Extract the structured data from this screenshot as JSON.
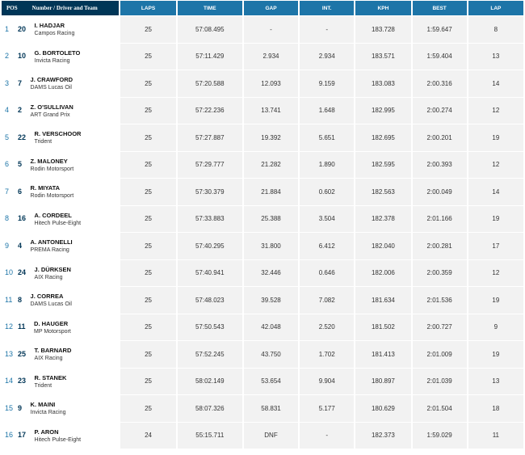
{
  "headers": {
    "pos": "POS",
    "driver": "Number / Driver and Team",
    "laps": "LAPS",
    "time": "TIME",
    "gap": "GAP",
    "int": "INT.",
    "kph": "KPH",
    "best": "BEST",
    "lap": "LAP"
  },
  "rows": [
    {
      "pos": "1",
      "num": "20",
      "name": "I. HADJAR",
      "team": "Campos Racing",
      "laps": "25",
      "time": "57:08.495",
      "gap": "-",
      "int": "-",
      "kph": "183.728",
      "best": "1:59.647",
      "lap": "8"
    },
    {
      "pos": "2",
      "num": "10",
      "name": "G. BORTOLETO",
      "team": "Invicta Racing",
      "laps": "25",
      "time": "57:11.429",
      "gap": "2.934",
      "int": "2.934",
      "kph": "183.571",
      "best": "1:59.404",
      "lap": "13"
    },
    {
      "pos": "3",
      "num": "7",
      "name": "J. CRAWFORD",
      "team": "DAMS Lucas Oil",
      "laps": "25",
      "time": "57:20.588",
      "gap": "12.093",
      "int": "9.159",
      "kph": "183.083",
      "best": "2:00.316",
      "lap": "14"
    },
    {
      "pos": "4",
      "num": "2",
      "name": "Z. O'SULLIVAN",
      "team": "ART Grand Prix",
      "laps": "25",
      "time": "57:22.236",
      "gap": "13.741",
      "int": "1.648",
      "kph": "182.995",
      "best": "2:00.274",
      "lap": "12"
    },
    {
      "pos": "5",
      "num": "22",
      "name": "R. VERSCHOOR",
      "team": "Trident",
      "laps": "25",
      "time": "57:27.887",
      "gap": "19.392",
      "int": "5.651",
      "kph": "182.695",
      "best": "2:00.201",
      "lap": "19"
    },
    {
      "pos": "6",
      "num": "5",
      "name": "Z. MALONEY",
      "team": "Rodin Motorsport",
      "laps": "25",
      "time": "57:29.777",
      "gap": "21.282",
      "int": "1.890",
      "kph": "182.595",
      "best": "2:00.393",
      "lap": "12"
    },
    {
      "pos": "7",
      "num": "6",
      "name": "R. MIYATA",
      "team": "Rodin Motorsport",
      "laps": "25",
      "time": "57:30.379",
      "gap": "21.884",
      "int": "0.602",
      "kph": "182.563",
      "best": "2:00.049",
      "lap": "14"
    },
    {
      "pos": "8",
      "num": "16",
      "name": "A. CORDEEL",
      "team": "Hitech Pulse-Eight",
      "laps": "25",
      "time": "57:33.883",
      "gap": "25.388",
      "int": "3.504",
      "kph": "182.378",
      "best": "2:01.166",
      "lap": "19"
    },
    {
      "pos": "9",
      "num": "4",
      "name": "A. ANTONELLI",
      "team": "PREMA Racing",
      "laps": "25",
      "time": "57:40.295",
      "gap": "31.800",
      "int": "6.412",
      "kph": "182.040",
      "best": "2:00.281",
      "lap": "17"
    },
    {
      "pos": "10",
      "num": "24",
      "name": "J. DÜRKSEN",
      "team": "AIX Racing",
      "laps": "25",
      "time": "57:40.941",
      "gap": "32.446",
      "int": "0.646",
      "kph": "182.006",
      "best": "2:00.359",
      "lap": "12"
    },
    {
      "pos": "11",
      "num": "8",
      "name": "J. CORREA",
      "team": "DAMS Lucas Oil",
      "laps": "25",
      "time": "57:48.023",
      "gap": "39.528",
      "int": "7.082",
      "kph": "181.634",
      "best": "2:01.536",
      "lap": "19"
    },
    {
      "pos": "12",
      "num": "11",
      "name": "D. HAUGER",
      "team": "MP Motorsport",
      "laps": "25",
      "time": "57:50.543",
      "gap": "42.048",
      "int": "2.520",
      "kph": "181.502",
      "best": "2:00.727",
      "lap": "9"
    },
    {
      "pos": "13",
      "num": "25",
      "name": "T. BARNARD",
      "team": "AIX Racing",
      "laps": "25",
      "time": "57:52.245",
      "gap": "43.750",
      "int": "1.702",
      "kph": "181.413",
      "best": "2:01.009",
      "lap": "19"
    },
    {
      "pos": "14",
      "num": "23",
      "name": "R. STANEK",
      "team": "Trident",
      "laps": "25",
      "time": "58:02.149",
      "gap": "53.654",
      "int": "9.904",
      "kph": "180.897",
      "best": "2:01.039",
      "lap": "13"
    },
    {
      "pos": "15",
      "num": "9",
      "name": "K. MAINI",
      "team": "Invicta Racing",
      "laps": "25",
      "time": "58:07.326",
      "gap": "58.831",
      "int": "5.177",
      "kph": "180.629",
      "best": "2:01.504",
      "lap": "18"
    },
    {
      "pos": "16",
      "num": "17",
      "name": "P. ARON",
      "team": "Hitech Pulse-Eight",
      "laps": "24",
      "time": "55:15.711",
      "gap": "DNF",
      "int": "-",
      "kph": "182.373",
      "best": "1:59.029",
      "lap": "11"
    }
  ]
}
